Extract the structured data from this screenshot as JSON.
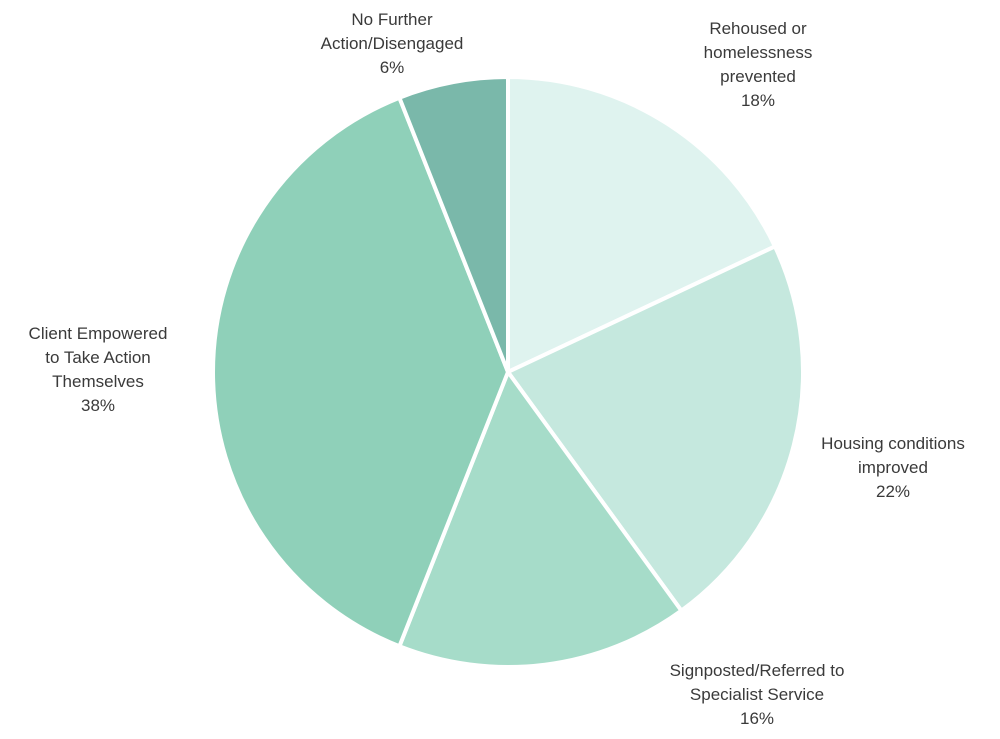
{
  "chart_data": {
    "type": "pie",
    "title": "",
    "start_angle_deg": 0,
    "direction": "clockwise",
    "slices": [
      {
        "label_lines": [
          "Rehoused or",
          "homelessness",
          "prevented"
        ],
        "label": "Rehoused or homelessness prevented",
        "value": 18,
        "percent_text": "18%",
        "color": "#dff3ef"
      },
      {
        "label_lines": [
          "Housing conditions",
          "improved"
        ],
        "label": "Housing conditions improved",
        "value": 22,
        "percent_text": "22%",
        "color": "#c5e8de"
      },
      {
        "label_lines": [
          "Signposted/Referred to",
          "Specialist Service"
        ],
        "label": "Signposted/Referred to Specialist Service",
        "value": 16,
        "percent_text": "16%",
        "color": "#a6dcc9"
      },
      {
        "label_lines": [
          "Client Empowered",
          "to Take Action",
          "Themselves"
        ],
        "label": "Client Empowered to Take Action Themselves",
        "value": 38,
        "percent_text": "38%",
        "color": "#8fd0b9"
      },
      {
        "label_lines": [
          "No Further",
          "Action/Disengaged"
        ],
        "label": "No Further Action/Disengaged",
        "value": 6,
        "percent_text": "6%",
        "color": "#7ab8aa"
      }
    ]
  }
}
